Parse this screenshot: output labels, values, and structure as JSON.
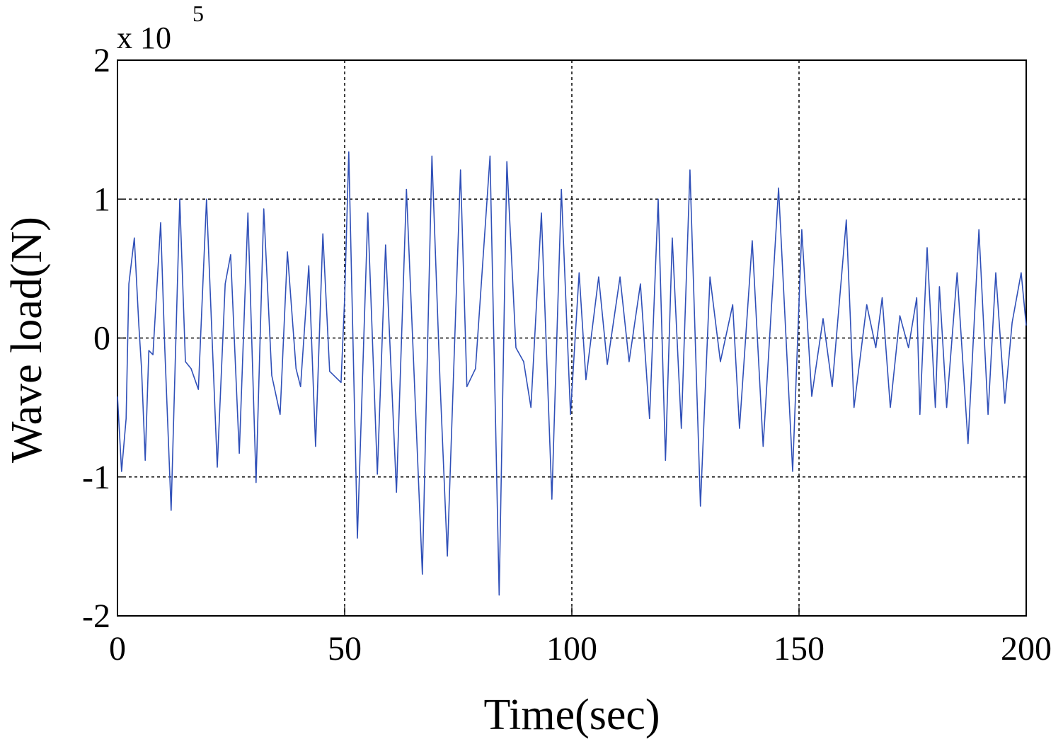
{
  "chart_data": {
    "type": "line",
    "xlabel": "Time(sec)",
    "ylabel": "Wave load(N)",
    "y_multiplier": "x 10",
    "y_exponent": "5",
    "color": "#3050b8",
    "x": [
      0,
      0.9,
      1.9,
      2.5,
      3.7,
      4.7,
      5.3,
      6.1,
      6.9,
      7.8,
      9.5,
      10.4,
      11.8,
      13.7,
      14.95,
      16.2,
      17.8,
      19.6,
      21.96,
      23.7,
      24.9,
      26.8,
      28.7,
      30.5,
      32.2,
      33.96,
      35.8,
      37.4,
      39.3,
      40.3,
      42.1,
      43.6,
      45.2,
      46.7,
      49.2,
      50.0,
      50.9,
      52.8,
      55.1,
      57.2,
      59.0,
      61.4,
      63.6,
      67.1,
      69.2,
      71.0,
      72.6,
      75.5,
      76.9,
      78.8,
      82.0,
      84.0,
      85.7,
      87.7,
      89.4,
      91.0,
      93.3,
      95.6,
      97.7,
      99.7,
      101.6,
      103.1,
      105.9,
      107.8,
      110.6,
      112.6,
      115.1,
      117.1,
      119.0,
      120.6,
      122.1,
      124.1,
      126.0,
      128.3,
      130.4,
      132.7,
      135.4,
      136.9,
      139.7,
      142.1,
      145.5,
      148.6,
      150.6,
      152.8,
      155.3,
      157.3,
      160.4,
      162.1,
      164.9,
      166.9,
      168.3,
      170.1,
      172.2,
      174.1,
      175.9,
      176.6,
      178.2,
      180.0,
      180.9,
      182.5,
      184.8,
      187.2,
      189.6,
      191.6,
      193.3,
      195.3,
      196.9,
      198.9,
      200
    ],
    "values": [
      -0.42,
      -0.96,
      -0.58,
      0.39,
      0.72,
      0.09,
      -0.22,
      -0.88,
      -0.09,
      -0.12,
      0.83,
      -0.07,
      -1.24,
      1.0,
      -0.17,
      -0.22,
      -0.37,
      1.0,
      -0.93,
      0.39,
      0.6,
      -0.83,
      0.9,
      -1.04,
      0.93,
      -0.27,
      -0.55,
      0.62,
      -0.22,
      -0.35,
      0.52,
      -0.78,
      0.75,
      -0.24,
      -0.32,
      0.29,
      1.34,
      -1.44,
      0.9,
      -0.98,
      0.67,
      -1.11,
      1.07,
      -1.7,
      1.31,
      -0.32,
      -1.57,
      1.21,
      -0.35,
      -0.22,
      1.31,
      -1.85,
      1.27,
      -0.07,
      -0.17,
      -0.5,
      0.9,
      -1.16,
      1.07,
      -0.55,
      0.47,
      -0.3,
      0.44,
      -0.19,
      0.44,
      -0.17,
      0.39,
      -0.58,
      1.0,
      -0.88,
      0.72,
      -0.65,
      1.21,
      -1.21,
      0.44,
      -0.17,
      0.24,
      -0.65,
      0.7,
      -0.78,
      1.08,
      -0.96,
      0.78,
      -0.42,
      0.14,
      -0.35,
      0.85,
      -0.5,
      0.24,
      -0.07,
      0.29,
      -0.5,
      0.16,
      -0.07,
      0.29,
      -0.55,
      0.65,
      -0.5,
      0.37,
      -0.5,
      0.47,
      -0.76,
      0.78,
      -0.55,
      0.47,
      -0.47,
      0.11,
      0.47,
      0.09
    ],
    "xlim": [
      0,
      200
    ],
    "ylim": [
      -2,
      2
    ],
    "xticks": [
      0,
      50,
      100,
      150,
      200
    ],
    "yticks": [
      -2,
      -1,
      0,
      1,
      2
    ],
    "grid": true
  }
}
